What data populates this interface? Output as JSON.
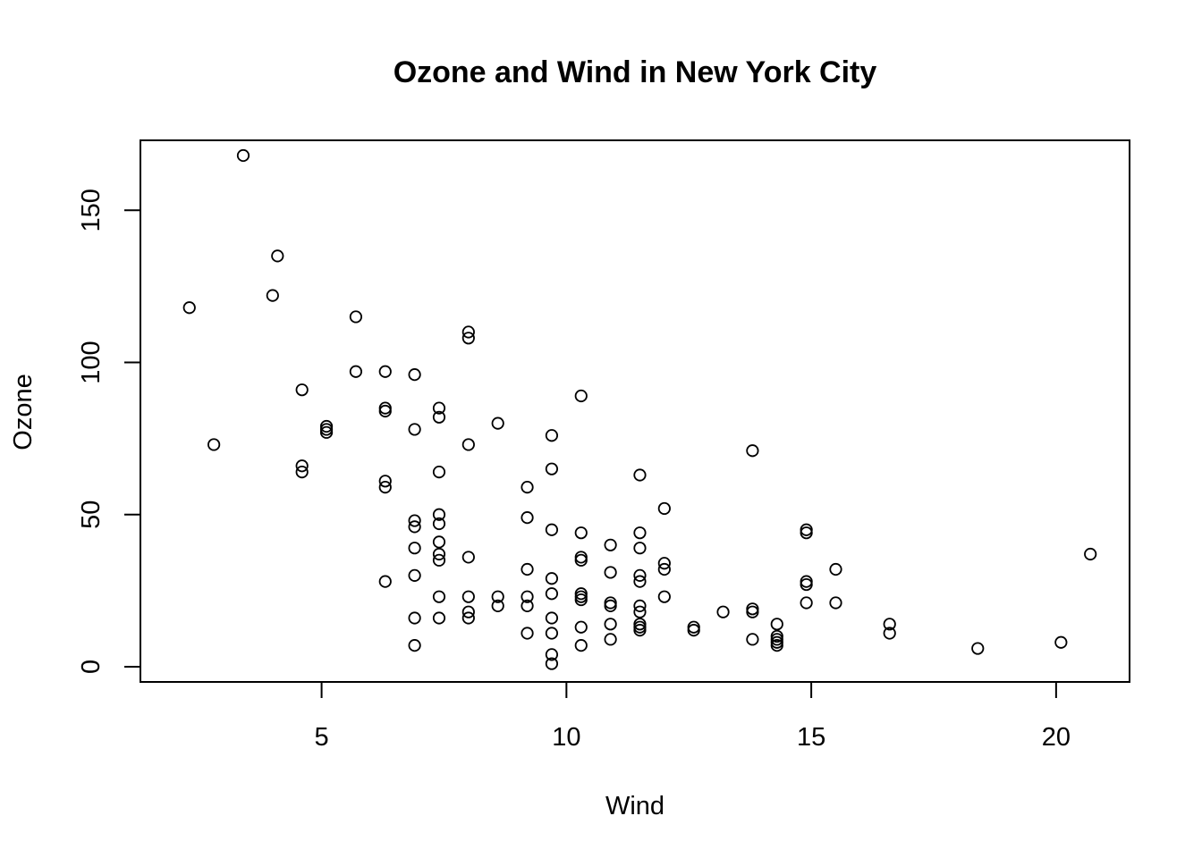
{
  "chart_data": {
    "type": "scatter",
    "title": "Ozone and Wind in New York City",
    "xlabel": "Wind",
    "ylabel": "Ozone",
    "xlim": [
      1.3,
      21.5
    ],
    "ylim": [
      -5,
      173
    ],
    "xticks": [
      5,
      10,
      15,
      20
    ],
    "yticks": [
      0,
      50,
      100,
      150
    ],
    "grid": false,
    "legend": "none",
    "points": [
      [
        2.3,
        118
      ],
      [
        2.8,
        73
      ],
      [
        3.4,
        168
      ],
      [
        4.0,
        122
      ],
      [
        4.1,
        135
      ],
      [
        4.6,
        91
      ],
      [
        4.6,
        66
      ],
      [
        4.6,
        64
      ],
      [
        5.1,
        79
      ],
      [
        5.1,
        78
      ],
      [
        5.1,
        77
      ],
      [
        5.7,
        115
      ],
      [
        5.7,
        97
      ],
      [
        6.3,
        97
      ],
      [
        6.3,
        85
      ],
      [
        6.3,
        84
      ],
      [
        6.3,
        61
      ],
      [
        6.3,
        59
      ],
      [
        6.3,
        28
      ],
      [
        6.9,
        96
      ],
      [
        6.9,
        78
      ],
      [
        6.9,
        48
      ],
      [
        6.9,
        46
      ],
      [
        6.9,
        39
      ],
      [
        6.9,
        30
      ],
      [
        6.9,
        16
      ],
      [
        6.9,
        7
      ],
      [
        7.4,
        85
      ],
      [
        7.4,
        82
      ],
      [
        7.4,
        64
      ],
      [
        7.4,
        50
      ],
      [
        7.4,
        47
      ],
      [
        7.4,
        41
      ],
      [
        7.4,
        37
      ],
      [
        7.4,
        35
      ],
      [
        7.4,
        23
      ],
      [
        7.4,
        16
      ],
      [
        8.0,
        110
      ],
      [
        8.0,
        108
      ],
      [
        8.0,
        73
      ],
      [
        8.0,
        36
      ],
      [
        8.0,
        23
      ],
      [
        8.0,
        18
      ],
      [
        8.0,
        16
      ],
      [
        8.6,
        80
      ],
      [
        8.6,
        23
      ],
      [
        8.6,
        20
      ],
      [
        9.2,
        59
      ],
      [
        9.2,
        49
      ],
      [
        9.2,
        32
      ],
      [
        9.2,
        23
      ],
      [
        9.2,
        20
      ],
      [
        9.2,
        11
      ],
      [
        9.7,
        76
      ],
      [
        9.7,
        65
      ],
      [
        9.7,
        45
      ],
      [
        9.7,
        29
      ],
      [
        9.7,
        24
      ],
      [
        9.7,
        16
      ],
      [
        9.7,
        11
      ],
      [
        9.7,
        4
      ],
      [
        9.7,
        1
      ],
      [
        10.3,
        89
      ],
      [
        10.3,
        44
      ],
      [
        10.3,
        36
      ],
      [
        10.3,
        35
      ],
      [
        10.3,
        24
      ],
      [
        10.3,
        23
      ],
      [
        10.3,
        22
      ],
      [
        10.3,
        13
      ],
      [
        10.3,
        7
      ],
      [
        10.9,
        40
      ],
      [
        10.9,
        31
      ],
      [
        10.9,
        21
      ],
      [
        10.9,
        20
      ],
      [
        10.9,
        14
      ],
      [
        10.9,
        9
      ],
      [
        11.5,
        63
      ],
      [
        11.5,
        44
      ],
      [
        11.5,
        39
      ],
      [
        11.5,
        30
      ],
      [
        11.5,
        28
      ],
      [
        11.5,
        20
      ],
      [
        11.5,
        18
      ],
      [
        11.5,
        14
      ],
      [
        11.5,
        13
      ],
      [
        11.5,
        12
      ],
      [
        12.0,
        52
      ],
      [
        12.0,
        34
      ],
      [
        12.0,
        32
      ],
      [
        12.0,
        23
      ],
      [
        12.6,
        13
      ],
      [
        12.6,
        12
      ],
      [
        13.2,
        18
      ],
      [
        13.8,
        71
      ],
      [
        13.8,
        19
      ],
      [
        13.8,
        18
      ],
      [
        13.8,
        9
      ],
      [
        14.3,
        14
      ],
      [
        14.3,
        10
      ],
      [
        14.3,
        9
      ],
      [
        14.3,
        8
      ],
      [
        14.3,
        7
      ],
      [
        14.9,
        45
      ],
      [
        14.9,
        44
      ],
      [
        14.9,
        28
      ],
      [
        14.9,
        27
      ],
      [
        14.9,
        21
      ],
      [
        15.5,
        32
      ],
      [
        15.5,
        21
      ],
      [
        16.6,
        14
      ],
      [
        16.6,
        11
      ],
      [
        18.4,
        6
      ],
      [
        20.1,
        8
      ],
      [
        20.7,
        37
      ]
    ]
  }
}
